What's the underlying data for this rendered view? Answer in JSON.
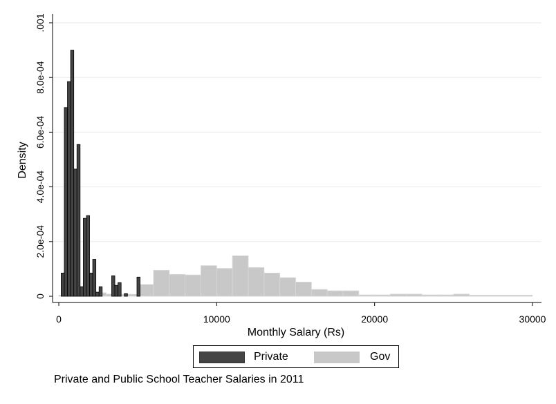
{
  "chart_data": {
    "type": "bar",
    "xlabel": "Monthly Salary (Rs)",
    "ylabel": "Density",
    "xlim": [
      0,
      30000
    ],
    "ylim": [
      0,
      0.001
    ],
    "xticks": [
      0,
      10000,
      20000,
      30000
    ],
    "xtick_labels": [
      "0",
      "10000",
      "20000",
      "30000"
    ],
    "yticks": [
      0,
      0.0002,
      0.0004,
      0.0006,
      0.0008,
      0.001
    ],
    "ytick_labels": [
      "0",
      "2.0e-04",
      "4.0e-04",
      "6.0e-04",
      "8.0e-04",
      ".001"
    ],
    "grid": true,
    "legend_position": "bottom",
    "series": [
      {
        "name": "Private",
        "color": "#444444",
        "bins": [
          [
            250,
            8.5e-05
          ],
          [
            450,
            0.00069
          ],
          [
            650,
            0.000785
          ],
          [
            850,
            0.0009
          ],
          [
            1050,
            0.000465
          ],
          [
            1250,
            0.000555
          ],
          [
            1450,
            3.5e-05
          ],
          [
            1650,
            0.000285
          ],
          [
            1850,
            0.000295
          ],
          [
            2050,
            8.5e-05
          ],
          [
            2250,
            0.000135
          ],
          [
            2450,
            1.5e-05
          ],
          [
            2650,
            3.5e-05
          ],
          [
            3450,
            7.5e-05
          ],
          [
            3650,
            4e-05
          ],
          [
            3850,
            5e-05
          ],
          [
            4250,
            1e-05
          ],
          [
            5050,
            7e-05
          ]
        ],
        "bin_width": 200
      },
      {
        "name": "Gov",
        "color": "#c8c8c8",
        "bins": [
          [
            500,
            4e-06
          ],
          [
            1500,
            1.5e-05
          ],
          [
            2500,
            1.3e-05
          ],
          [
            3500,
            8e-06
          ],
          [
            4500,
            7e-06
          ],
          [
            5500,
            4.3e-05
          ],
          [
            6500,
            9.5e-05
          ],
          [
            7500,
            8e-05
          ],
          [
            8500,
            7.8e-05
          ],
          [
            9500,
            0.000112
          ],
          [
            10500,
            0.000102
          ],
          [
            11500,
            0.000148
          ],
          [
            12500,
            0.000105
          ],
          [
            13500,
            8.5e-05
          ],
          [
            14500,
            6.8e-05
          ],
          [
            15500,
            5.2e-05
          ],
          [
            16500,
            2.5e-05
          ],
          [
            17500,
            2e-05
          ],
          [
            18500,
            2e-05
          ],
          [
            19500,
            5e-06
          ],
          [
            20500,
            5e-06
          ],
          [
            21500,
            8e-06
          ],
          [
            22500,
            8e-06
          ],
          [
            23500,
            5e-06
          ],
          [
            24500,
            5e-06
          ],
          [
            25500,
            8e-06
          ],
          [
            26500,
            4e-06
          ],
          [
            27500,
            4e-06
          ],
          [
            28500,
            4e-06
          ],
          [
            29500,
            4e-06
          ]
        ],
        "bin_width": 1000
      }
    ]
  },
  "legend": {
    "private_label": "Private",
    "gov_label": "Gov"
  },
  "caption": "Private and Public School Teacher Salaries in 2011"
}
